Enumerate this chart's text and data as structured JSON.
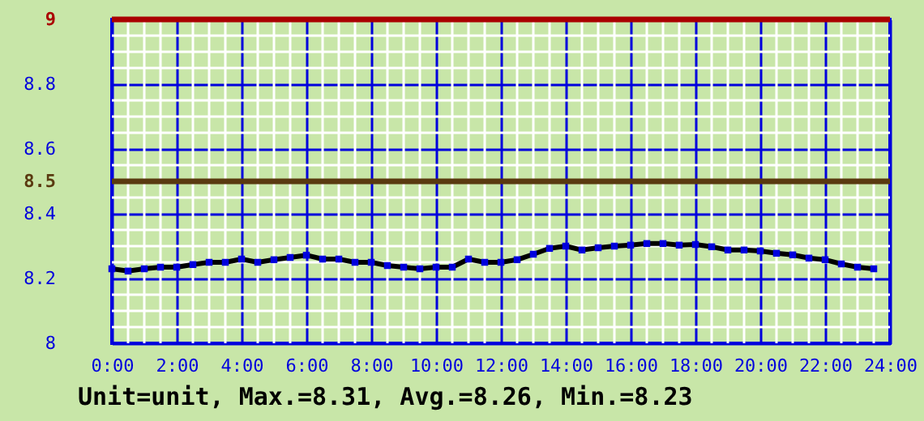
{
  "chart_data": {
    "type": "line",
    "annotations": [
      "Unit=unit, Max.=8.31, Avg.=8.26, Min.=8.23"
    ],
    "x": [
      0,
      0.5,
      1,
      1.5,
      2,
      2.5,
      3,
      3.5,
      4,
      4.5,
      5,
      5.5,
      6,
      6.5,
      7,
      7.5,
      8,
      8.5,
      9,
      9.5,
      10,
      10.5,
      11,
      11.5,
      12,
      12.5,
      13,
      13.5,
      14,
      14.5,
      15,
      15.5,
      16,
      16.5,
      17,
      17.5,
      18,
      18.5,
      19,
      19.5,
      20,
      20.5,
      21,
      21.5,
      22,
      22.5,
      23,
      23.5
    ],
    "series": [
      {
        "color": "#000000",
        "values": [
          8.23,
          8.223,
          8.23,
          8.235,
          8.235,
          8.243,
          8.25,
          8.25,
          8.26,
          8.25,
          8.258,
          8.265,
          8.272,
          8.26,
          8.26,
          8.25,
          8.25,
          8.24,
          8.235,
          8.23,
          8.235,
          8.235,
          8.26,
          8.25,
          8.25,
          8.258,
          8.275,
          8.293,
          8.3,
          8.288,
          8.295,
          8.3,
          8.303,
          8.308,
          8.308,
          8.303,
          8.305,
          8.298,
          8.288,
          8.288,
          8.285,
          8.278,
          8.273,
          8.263,
          8.258,
          8.245,
          8.235,
          8.23
        ]
      }
    ],
    "xlim": [
      0,
      24
    ],
    "xticks": [
      {
        "value": 0,
        "label": "0:00"
      },
      {
        "value": 2,
        "label": "2:00"
      },
      {
        "value": 4,
        "label": "4:00"
      },
      {
        "value": 6,
        "label": "6:00"
      },
      {
        "value": 8,
        "label": "8:00"
      },
      {
        "value": 10,
        "label": "10:00"
      },
      {
        "value": 12,
        "label": "12:00"
      },
      {
        "value": 14,
        "label": "14:00"
      },
      {
        "value": 16,
        "label": "16:00"
      },
      {
        "value": 18,
        "label": "18:00"
      },
      {
        "value": 20,
        "label": "20:00"
      },
      {
        "value": 22,
        "label": "22:00"
      },
      {
        "value": 24,
        "label": "24:00"
      }
    ],
    "ylim": [
      8,
      9
    ],
    "yticks": [
      8,
      8.2,
      8.4,
      8.5,
      8.6,
      8.8,
      9
    ],
    "ref_lines": [
      {
        "axis": "y",
        "value": 9,
        "label": null,
        "color": "#aa0000"
      },
      {
        "axis": "y",
        "value": 8.5,
        "label": null,
        "color": "#5a3a10"
      }
    ],
    "grid": true,
    "marker": "square",
    "line_style": "solid"
  }
}
